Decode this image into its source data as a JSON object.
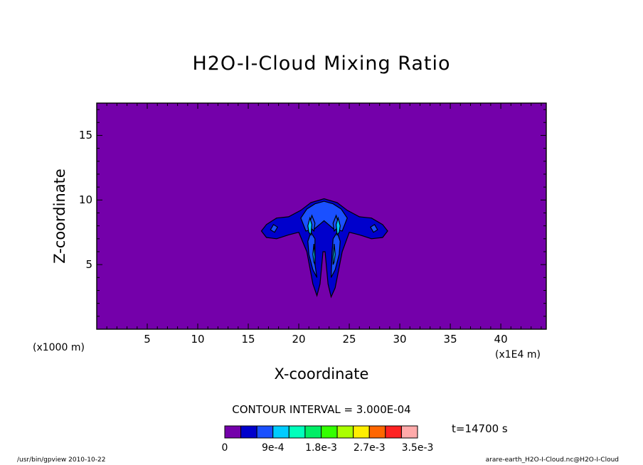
{
  "chart_data": {
    "type": "heatmap",
    "title": "H2O-I-Cloud Mixing Ratio",
    "xlabel": "X-coordinate",
    "ylabel": "Z-coordinate",
    "x_unit": "(x1E4 m)",
    "y_unit": "(x1000 m)",
    "xlim": [
      0,
      44.5
    ],
    "ylim": [
      0,
      17.5
    ],
    "x_ticks": [
      5,
      10,
      15,
      20,
      25,
      30,
      35,
      40
    ],
    "y_ticks": [
      5,
      10,
      15
    ],
    "contour_interval": "CONTOUR INTERVAL = 3.000E-04",
    "time": "t=14700 s",
    "colorbar": {
      "levels": [
        0,
        0.0003,
        0.0006,
        0.0009,
        0.0012,
        0.0015,
        0.0018,
        0.0021,
        0.0024,
        0.0027,
        0.003,
        0.0033,
        0.0035
      ],
      "labels": [
        "0",
        "9e-4",
        "1.8e-3",
        "2.7e-3",
        "3.5e-3"
      ],
      "label_positions": [
        0,
        3,
        6,
        9,
        12
      ],
      "colors": [
        "#7400aa",
        "#0000cc",
        "#1a50ff",
        "#00ccff",
        "#00ffbb",
        "#00ee66",
        "#33ff00",
        "#aaff00",
        "#ffee00",
        "#ff6600",
        "#ff2222",
        "#ffaaaa"
      ]
    },
    "cloud_levels": [
      {
        "level": 1,
        "color": "#0000cc",
        "polygons": [
          [
            [
              16.3,
              7.6
            ],
            [
              16.8,
              8.1
            ],
            [
              17.8,
              8.6
            ],
            [
              19.0,
              8.7
            ],
            [
              20.2,
              9.2
            ],
            [
              21.2,
              9.8
            ],
            [
              22.5,
              10.1
            ],
            [
              23.8,
              9.8
            ],
            [
              24.8,
              9.2
            ],
            [
              26.0,
              8.7
            ],
            [
              27.2,
              8.6
            ],
            [
              28.3,
              8.1
            ],
            [
              28.8,
              7.6
            ],
            [
              28.3,
              7.1
            ],
            [
              27.2,
              7.0
            ],
            [
              26.0,
              7.3
            ],
            [
              25.0,
              7.5
            ],
            [
              24.3,
              6.0
            ],
            [
              23.6,
              3.2
            ],
            [
              23.2,
              2.5
            ],
            [
              22.9,
              3.5
            ],
            [
              22.6,
              6.0
            ],
            [
              22.4,
              6.0
            ],
            [
              22.1,
              3.5
            ],
            [
              21.8,
              2.6
            ],
            [
              21.4,
              3.5
            ],
            [
              20.8,
              6.0
            ],
            [
              20.0,
              7.5
            ],
            [
              19.0,
              7.3
            ],
            [
              17.8,
              7.0
            ],
            [
              16.8,
              7.1
            ]
          ]
        ]
      },
      {
        "level": 2,
        "color": "#1a50ff",
        "polygons": [
          [
            [
              20.2,
              8.6
            ],
            [
              20.8,
              9.3
            ],
            [
              21.6,
              9.7
            ],
            [
              22.5,
              9.9
            ],
            [
              23.4,
              9.7
            ],
            [
              24.2,
              9.3
            ],
            [
              24.8,
              8.6
            ],
            [
              24.3,
              7.6
            ],
            [
              23.4,
              7.8
            ],
            [
              22.5,
              8.4
            ],
            [
              21.6,
              7.8
            ],
            [
              20.7,
              7.6
            ]
          ],
          [
            [
              17.2,
              7.7
            ],
            [
              17.5,
              8.1
            ],
            [
              17.9,
              7.9
            ],
            [
              17.6,
              7.5
            ]
          ],
          [
            [
              27.1,
              7.9
            ],
            [
              27.5,
              8.1
            ],
            [
              27.8,
              7.7
            ],
            [
              27.4,
              7.5
            ]
          ],
          [
            [
              20.9,
              6.8
            ],
            [
              21.2,
              7.5
            ],
            [
              21.6,
              7.0
            ],
            [
              21.6,
              5.0
            ],
            [
              21.8,
              4.0
            ],
            [
              21.4,
              4.6
            ],
            [
              21.0,
              5.8
            ]
          ],
          [
            [
              23.3,
              6.0
            ],
            [
              23.4,
              7.0
            ],
            [
              23.8,
              7.5
            ],
            [
              24.1,
              6.8
            ],
            [
              24.0,
              5.8
            ],
            [
              23.6,
              4.6
            ],
            [
              23.2,
              4.0
            ]
          ],
          [
            [
              21.0,
              8.0
            ],
            [
              21.3,
              8.8
            ],
            [
              21.6,
              8.2
            ],
            [
              21.5,
              7.6
            ]
          ],
          [
            [
              23.5,
              7.6
            ],
            [
              23.4,
              8.2
            ],
            [
              23.7,
              8.8
            ],
            [
              24.0,
              8.0
            ]
          ]
        ]
      },
      {
        "level": 3,
        "color": "#00ccff",
        "polygons": [
          [
            [
              20.9,
              8.0
            ],
            [
              21.1,
              8.6
            ],
            [
              21.3,
              8.1
            ],
            [
              21.2,
              7.3
            ],
            [
              21.0,
              7.5
            ]
          ],
          [
            [
              23.7,
              8.1
            ],
            [
              23.9,
              8.6
            ],
            [
              24.1,
              8.0
            ],
            [
              24.0,
              7.5
            ],
            [
              23.8,
              7.3
            ]
          ],
          [
            [
              21.4,
              5.8
            ],
            [
              21.5,
              6.6
            ],
            [
              21.6,
              5.6
            ],
            [
              21.6,
              5.0
            ],
            [
              21.5,
              5.2
            ]
          ],
          [
            [
              23.4,
              5.6
            ],
            [
              23.5,
              6.6
            ],
            [
              23.6,
              5.8
            ],
            [
              23.5,
              5.2
            ],
            [
              23.4,
              5.0
            ]
          ]
        ]
      }
    ]
  },
  "footer": {
    "left": "/usr/bin/gpview   2010-10-22",
    "right": "arare-earth_H2O-I-Cloud.nc@H2O-I-Cloud"
  }
}
